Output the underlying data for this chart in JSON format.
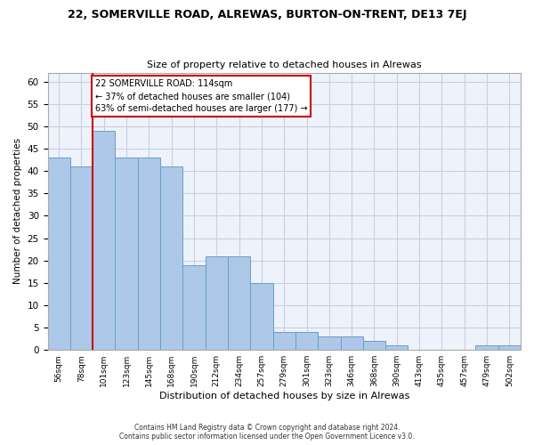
{
  "title": "22, SOMERVILLE ROAD, ALREWAS, BURTON-ON-TRENT, DE13 7EJ",
  "subtitle": "Size of property relative to detached houses in Alrewas",
  "xlabel": "Distribution of detached houses by size in Alrewas",
  "ylabel": "Number of detached properties",
  "bar_color": "#adc8e8",
  "bar_edge_color": "#6a9fc8",
  "background_color": "#eef2fb",
  "grid_color": "#c8d0e0",
  "annotation_box_color": "#cc0000",
  "annotation_line_color": "#cc0000",
  "property_line_x": 2,
  "annotation_text": "22 SOMERVILLE ROAD: 114sqm\n← 37% of detached houses are smaller (104)\n63% of semi-detached houses are larger (177) →",
  "footnote": "Contains HM Land Registry data © Crown copyright and database right 2024.\nContains public sector information licensed under the Open Government Licence v3.0.",
  "categories": [
    "56sqm",
    "78sqm",
    "101sqm",
    "123sqm",
    "145sqm",
    "168sqm",
    "190sqm",
    "212sqm",
    "234sqm",
    "257sqm",
    "279sqm",
    "301sqm",
    "323sqm",
    "346sqm",
    "368sqm",
    "390sqm",
    "413sqm",
    "435sqm",
    "457sqm",
    "479sqm",
    "502sqm"
  ],
  "values": [
    43,
    41,
    49,
    43,
    43,
    41,
    19,
    21,
    21,
    15,
    4,
    4,
    3,
    3,
    2,
    1,
    0,
    0,
    0,
    1,
    1
  ],
  "n_bins": 21,
  "ylim": [
    0,
    62
  ],
  "yticks": [
    0,
    5,
    10,
    15,
    20,
    25,
    30,
    35,
    40,
    45,
    50,
    55,
    60
  ]
}
